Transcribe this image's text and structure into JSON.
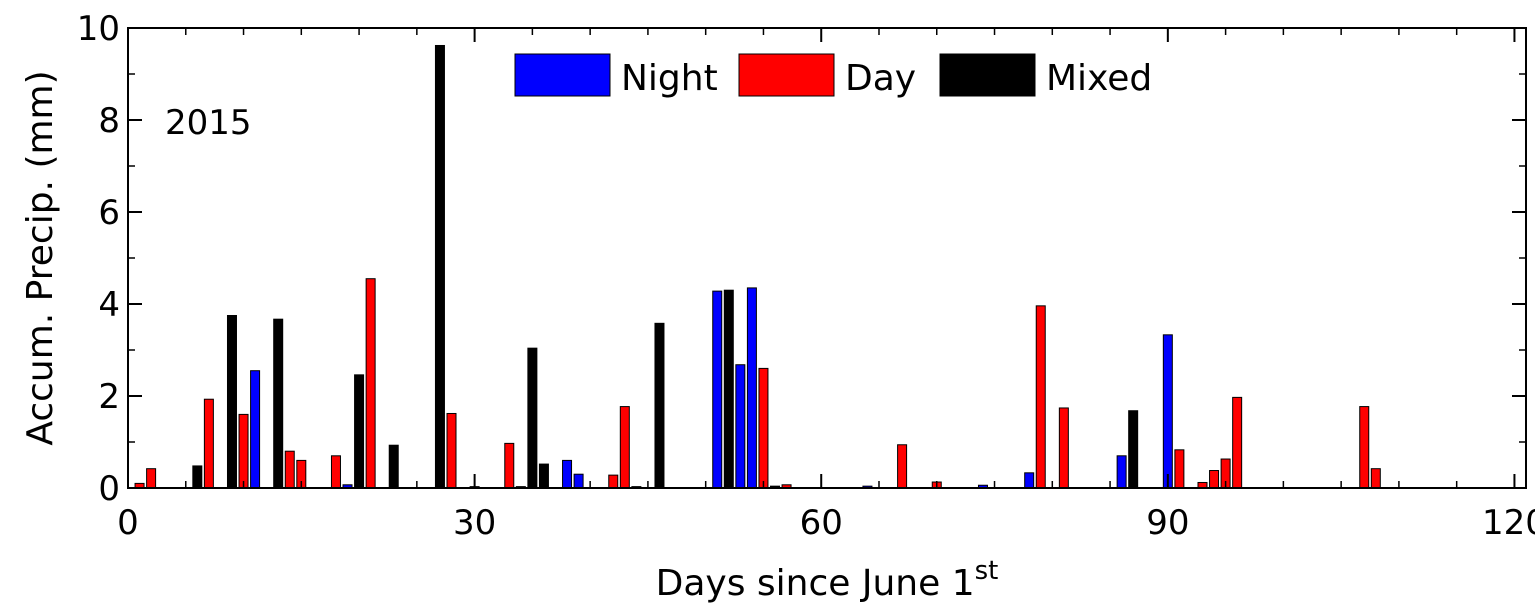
{
  "chart_data": {
    "type": "bar",
    "title": "",
    "xlabel": "Days since June 1",
    "xlabel_superscript": "st",
    "ylabel": "Accum. Precip. (mm)",
    "xlim": [
      0,
      121
    ],
    "ylim": [
      0,
      10
    ],
    "xticks": [
      0,
      30,
      60,
      90,
      120
    ],
    "yticks": [
      0,
      2,
      4,
      6,
      8,
      10
    ],
    "grid": false,
    "legend": "top-center",
    "annotations": [
      "2015"
    ],
    "series": [
      {
        "name": "Night",
        "color": "#0000ff",
        "points": [
          {
            "x": 11,
            "y": 2.55
          },
          {
            "x": 19,
            "y": 0.07
          },
          {
            "x": 38,
            "y": 0.6
          },
          {
            "x": 39,
            "y": 0.3
          },
          {
            "x": 51,
            "y": 4.28
          },
          {
            "x": 53,
            "y": 2.68
          },
          {
            "x": 54,
            "y": 4.35
          },
          {
            "x": 64,
            "y": 0.04
          },
          {
            "x": 74,
            "y": 0.06
          },
          {
            "x": 78,
            "y": 0.33
          },
          {
            "x": 86,
            "y": 0.7
          },
          {
            "x": 90,
            "y": 3.33
          }
        ]
      },
      {
        "name": "Day",
        "color": "#ff0000",
        "points": [
          {
            "x": 1,
            "y": 0.1
          },
          {
            "x": 2,
            "y": 0.42
          },
          {
            "x": 7,
            "y": 1.93
          },
          {
            "x": 10,
            "y": 1.6
          },
          {
            "x": 14,
            "y": 0.8
          },
          {
            "x": 15,
            "y": 0.6
          },
          {
            "x": 18,
            "y": 0.7
          },
          {
            "x": 21,
            "y": 4.55
          },
          {
            "x": 28,
            "y": 1.62
          },
          {
            "x": 33,
            "y": 0.97
          },
          {
            "x": 42,
            "y": 0.28
          },
          {
            "x": 43,
            "y": 1.77
          },
          {
            "x": 55,
            "y": 2.6
          },
          {
            "x": 57,
            "y": 0.07
          },
          {
            "x": 67,
            "y": 0.94
          },
          {
            "x": 70,
            "y": 0.13
          },
          {
            "x": 79,
            "y": 3.96
          },
          {
            "x": 81,
            "y": 1.74
          },
          {
            "x": 91,
            "y": 0.83
          },
          {
            "x": 93,
            "y": 0.12
          },
          {
            "x": 94,
            "y": 0.38
          },
          {
            "x": 95,
            "y": 0.63
          },
          {
            "x": 96,
            "y": 1.97
          },
          {
            "x": 107,
            "y": 1.77
          },
          {
            "x": 108,
            "y": 0.42
          }
        ]
      },
      {
        "name": "Mixed",
        "color": "#000000",
        "points": [
          {
            "x": 6,
            "y": 0.48
          },
          {
            "x": 9,
            "y": 3.75
          },
          {
            "x": 13,
            "y": 3.67
          },
          {
            "x": 20,
            "y": 2.46
          },
          {
            "x": 23,
            "y": 0.93
          },
          {
            "x": 27,
            "y": 9.62
          },
          {
            "x": 30,
            "y": 0.03
          },
          {
            "x": 34,
            "y": 0.03
          },
          {
            "x": 35,
            "y": 3.04
          },
          {
            "x": 36,
            "y": 0.52
          },
          {
            "x": 44,
            "y": 0.03
          },
          {
            "x": 46,
            "y": 3.58
          },
          {
            "x": 52,
            "y": 4.3
          },
          {
            "x": 56,
            "y": 0.04
          },
          {
            "x": 87,
            "y": 1.68
          }
        ]
      }
    ]
  }
}
